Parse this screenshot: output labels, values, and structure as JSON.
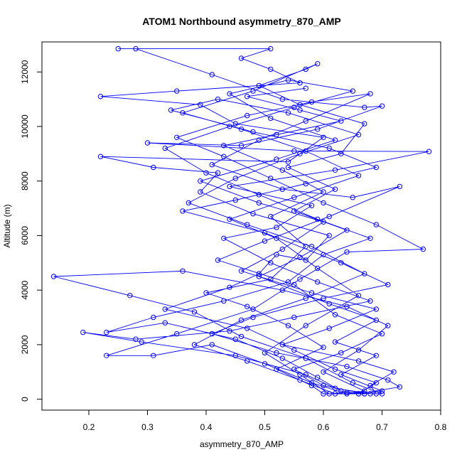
{
  "chart_data": {
    "type": "line",
    "title": "ATOM1 Northbound asymmetry_870_AMP",
    "xlabel": "asymmetry_870_AMP",
    "ylabel": "Altitude (m)",
    "xlim": [
      0.12,
      0.8
    ],
    "ylim": [
      -400,
      13100
    ],
    "xticks": [
      0.2,
      0.3,
      0.4,
      0.5,
      0.6,
      0.7,
      0.8
    ],
    "yticks": [
      0,
      2000,
      4000,
      6000,
      8000,
      10000,
      12000
    ],
    "grid": false,
    "legend": "none",
    "line_color": "#0000ff",
    "marker": "open-circle",
    "series": [
      {
        "points": [
          [
            0.66,
            200
          ],
          [
            0.69,
            600
          ],
          [
            0.62,
            1100
          ],
          [
            0.55,
            1800
          ],
          [
            0.47,
            2600
          ],
          [
            0.33,
            3300
          ],
          [
            0.44,
            4100
          ],
          [
            0.49,
            4600
          ],
          [
            0.52,
            5300
          ],
          [
            0.57,
            5100
          ],
          [
            0.61,
            6000
          ],
          [
            0.48,
            6800
          ],
          [
            0.39,
            7600
          ],
          [
            0.42,
            8300
          ],
          [
            0.31,
            8500
          ],
          [
            0.22,
            8900
          ],
          [
            0.54,
            8700
          ],
          [
            0.6,
            9600
          ],
          [
            0.45,
            10100
          ],
          [
            0.39,
            10800
          ],
          [
            0.22,
            11100
          ],
          [
            0.35,
            11300
          ],
          [
            0.56,
            11600
          ],
          [
            0.51,
            12100
          ],
          [
            0.46,
            12500
          ],
          [
            0.51,
            12850
          ],
          [
            0.25,
            12850
          ],
          [
            0.28,
            12850
          ],
          [
            0.41,
            11900
          ],
          [
            0.53,
            11000
          ],
          [
            0.67,
            10700
          ],
          [
            0.7,
            10750
          ],
          [
            0.59,
            9900
          ],
          [
            0.46,
            9300
          ],
          [
            0.3,
            9400
          ],
          [
            0.55,
            9100
          ],
          [
            0.78,
            9080
          ],
          [
            0.62,
            8400
          ],
          [
            0.44,
            7800
          ],
          [
            0.58,
            7100
          ],
          [
            0.52,
            6300
          ],
          [
            0.43,
            5900
          ],
          [
            0.51,
            5000
          ],
          [
            0.59,
            4300
          ],
          [
            0.68,
            3600
          ],
          [
            0.55,
            3000
          ],
          [
            0.44,
            2500
          ],
          [
            0.28,
            2200
          ],
          [
            0.19,
            2450
          ],
          [
            0.29,
            2100
          ],
          [
            0.45,
            1600
          ],
          [
            0.57,
            900
          ],
          [
            0.62,
            400
          ],
          [
            0.68,
            200
          ],
          [
            0.7,
            200
          ],
          [
            0.65,
            600
          ],
          [
            0.57,
            1500
          ],
          [
            0.46,
            2300
          ],
          [
            0.38,
            3200
          ],
          [
            0.27,
            3800
          ],
          [
            0.14,
            4500
          ],
          [
            0.36,
            4700
          ],
          [
            0.53,
            4000
          ],
          [
            0.64,
            3400
          ],
          [
            0.71,
            2700
          ],
          [
            0.66,
            1800
          ],
          [
            0.6,
            1000
          ],
          [
            0.67,
            300
          ],
          [
            0.64,
            200
          ],
          [
            0.58,
            600
          ],
          [
            0.5,
            1300
          ],
          [
            0.41,
            2000
          ],
          [
            0.31,
            1600
          ],
          [
            0.23,
            1600
          ],
          [
            0.35,
            2400
          ],
          [
            0.48,
            3300
          ],
          [
            0.56,
            4400
          ],
          [
            0.64,
            5400
          ],
          [
            0.77,
            5500
          ],
          [
            0.69,
            6400
          ],
          [
            0.6,
            7200
          ],
          [
            0.51,
            8100
          ],
          [
            0.43,
            8900
          ],
          [
            0.35,
            9600
          ],
          [
            0.47,
            10400
          ],
          [
            0.58,
            10900
          ],
          [
            0.68,
            11200
          ],
          [
            0.57,
            10200
          ],
          [
            0.49,
            9500
          ],
          [
            0.41,
            8600
          ],
          [
            0.53,
            7700
          ],
          [
            0.65,
            7400
          ],
          [
            0.73,
            7800
          ],
          [
            0.61,
            6700
          ],
          [
            0.5,
            5800
          ],
          [
            0.42,
            5100
          ],
          [
            0.55,
            4200
          ],
          [
            0.62,
            3100
          ],
          [
            0.7,
            2400
          ],
          [
            0.63,
            1700
          ],
          [
            0.55,
            1100
          ],
          [
            0.6,
            500
          ],
          [
            0.67,
            200
          ],
          [
            0.62,
            200
          ],
          [
            0.56,
            700
          ],
          [
            0.47,
            1400
          ],
          [
            0.38,
            2000
          ],
          [
            0.46,
            2900
          ],
          [
            0.57,
            3700
          ],
          [
            0.67,
            4600
          ],
          [
            0.58,
            5600
          ],
          [
            0.47,
            6400
          ],
          [
            0.37,
            7200
          ],
          [
            0.45,
            8100
          ],
          [
            0.56,
            9000
          ],
          [
            0.66,
            9700
          ],
          [
            0.54,
            10500
          ],
          [
            0.42,
            11000
          ],
          [
            0.34,
            10600
          ],
          [
            0.48,
            9800
          ],
          [
            0.61,
            9200
          ],
          [
            0.69,
            8500
          ],
          [
            0.57,
            7900
          ],
          [
            0.45,
            7300
          ],
          [
            0.36,
            6900
          ],
          [
            0.5,
            6100
          ],
          [
            0.63,
            5000
          ],
          [
            0.71,
            4200
          ],
          [
            0.6,
            3700
          ],
          [
            0.48,
            3000
          ],
          [
            0.41,
            2400
          ],
          [
            0.52,
            1700
          ],
          [
            0.64,
            1200
          ],
          [
            0.71,
            700
          ],
          [
            0.73,
            450
          ],
          [
            0.66,
            200
          ],
          [
            0.63,
            300
          ],
          [
            0.59,
            800
          ],
          [
            0.53,
            1500
          ],
          [
            0.45,
            2200
          ],
          [
            0.33,
            2800
          ],
          [
            0.23,
            2450
          ],
          [
            0.31,
            3000
          ],
          [
            0.43,
            3600
          ],
          [
            0.54,
            4300
          ],
          [
            0.6,
            5300
          ],
          [
            0.68,
            5900
          ],
          [
            0.59,
            6600
          ],
          [
            0.49,
            7500
          ],
          [
            0.4,
            8300
          ],
          [
            0.33,
            9200
          ],
          [
            0.44,
            10000
          ],
          [
            0.55,
            10700
          ],
          [
            0.65,
            11300
          ],
          [
            0.54,
            11700
          ],
          [
            0.44,
            11200
          ],
          [
            0.51,
            10300
          ],
          [
            0.62,
            9500
          ],
          [
            0.52,
            8800
          ],
          [
            0.39,
            8000
          ],
          [
            0.49,
            7200
          ],
          [
            0.6,
            6500
          ],
          [
            0.53,
            5500
          ],
          [
            0.46,
            4700
          ],
          [
            0.58,
            3900
          ],
          [
            0.69,
            3300
          ],
          [
            0.61,
            2600
          ],
          [
            0.53,
            2000
          ],
          [
            0.66,
            1400
          ],
          [
            0.72,
            1000
          ],
          [
            0.68,
            500
          ],
          [
            0.69,
            200
          ],
          [
            0.64,
            250
          ],
          [
            0.61,
            200
          ],
          [
            0.56,
            900
          ],
          [
            0.5,
            1700
          ],
          [
            0.57,
            2700
          ],
          [
            0.66,
            3800
          ],
          [
            0.59,
            4800
          ],
          [
            0.52,
            5900
          ],
          [
            0.44,
            6600
          ],
          [
            0.55,
            7400
          ],
          [
            0.66,
            8200
          ],
          [
            0.57,
            9100
          ],
          [
            0.46,
            9900
          ],
          [
            0.36,
            10500
          ],
          [
            0.48,
            11300
          ],
          [
            0.59,
            12300
          ],
          [
            0.57,
            12100
          ],
          [
            0.49,
            11500
          ],
          [
            0.56,
            10800
          ],
          [
            0.67,
            10100
          ],
          [
            0.63,
            9000
          ],
          [
            0.54,
            8500
          ],
          [
            0.62,
            7700
          ],
          [
            0.55,
            6900
          ],
          [
            0.64,
            6200
          ],
          [
            0.56,
            5200
          ],
          [
            0.49,
            4500
          ],
          [
            0.61,
            3500
          ],
          [
            0.69,
            2900
          ],
          [
            0.62,
            2100
          ],
          [
            0.69,
            1600
          ],
          [
            0.63,
            900
          ],
          [
            0.7,
            300
          ],
          [
            0.67,
            200
          ],
          [
            0.6,
            200
          ],
          [
            0.58,
            500
          ],
          [
            0.52,
            1100
          ],
          [
            0.6,
            1900
          ],
          [
            0.54,
            2700
          ],
          [
            0.47,
            3400
          ],
          [
            0.4,
            3900
          ],
          [
            0.51,
            4400
          ],
          [
            0.57,
            5600
          ],
          [
            0.51,
            6700
          ],
          [
            0.6,
            7600
          ],
          [
            0.53,
            8400
          ],
          [
            0.43,
            9300
          ],
          [
            0.52,
            9700
          ],
          [
            0.63,
            10200
          ],
          [
            0.56,
            10600
          ],
          [
            0.47,
            11100
          ],
          [
            0.57,
            11400
          ]
        ]
      }
    ]
  }
}
